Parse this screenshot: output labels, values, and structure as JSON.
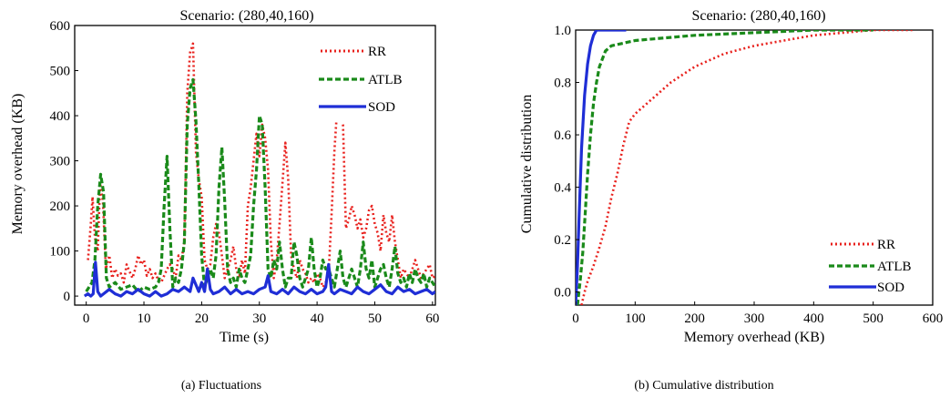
{
  "figure": {
    "caption_a": "(a) Fluctuations",
    "caption_b": "(b) Cumulative distribution"
  },
  "chart_data": [
    {
      "type": "line",
      "title": "Scenario: (280,40,160)",
      "xlabel": "Time (s)",
      "ylabel": "Memory overhead (KB)",
      "xlim": [
        -2,
        60.5
      ],
      "ylim": [
        -20,
        600
      ],
      "xticks": [
        0,
        10,
        20,
        30,
        40,
        50,
        60
      ],
      "yticks": [
        0,
        100,
        200,
        300,
        400,
        500,
        600
      ],
      "grid": false,
      "legend_position": "top-right",
      "series": [
        {
          "name": "RR",
          "color": "#e8211d",
          "style": "dotted",
          "x": [
            0.3,
            0.8,
            1.1,
            1.5,
            2.0,
            2.4,
            2.9,
            3.4,
            4.0,
            4.5,
            5.0,
            5.5,
            6.0,
            6.5,
            7.0,
            7.5,
            8.0,
            8.5,
            9.0,
            9.5,
            10.0,
            10.5,
            11.0,
            11.5,
            12.0,
            12.5,
            13.0,
            13.5,
            14.0,
            14.5,
            15.0,
            15.5,
            16.0,
            16.5,
            17.0,
            17.5,
            18.0,
            18.5,
            19.0,
            19.5,
            20.0,
            20.5,
            21.0,
            21.5,
            22.0,
            22.5,
            23.0,
            23.5,
            24.0,
            24.5,
            25.0,
            25.5,
            26.0,
            26.5,
            27.0,
            27.5,
            28.0,
            28.5,
            29.0,
            29.5,
            30.0,
            30.5,
            31.0,
            31.5,
            32.0,
            32.5,
            33.0,
            33.5,
            34.0,
            34.5,
            35.0,
            35.5,
            36.0,
            36.5,
            37.0,
            37.5,
            38.0,
            38.5,
            39.0,
            39.5,
            40.0,
            40.5,
            41.0,
            41.5,
            42.0,
            42.5,
            43.0,
            43.5,
            44.0,
            44.5,
            45.0,
            45.5,
            46.0,
            46.5,
            47.0,
            47.5,
            48.0,
            48.5,
            49.0,
            49.5,
            50.0,
            50.5,
            51.0,
            51.5,
            52.0,
            52.5,
            53.0,
            53.5,
            54.0,
            54.5,
            55.0,
            55.5,
            56.0,
            56.5,
            57.0,
            57.5,
            58.0,
            58.5,
            59.0,
            59.5,
            60.0,
            60.5
          ],
          "values": [
            80,
            160,
            220,
            130,
            100,
            250,
            210,
            60,
            90,
            40,
            60,
            45,
            50,
            30,
            70,
            55,
            40,
            60,
            90,
            70,
            80,
            45,
            60,
            40,
            50,
            35,
            30,
            45,
            60,
            70,
            60,
            40,
            90,
            80,
            120,
            450,
            540,
            560,
            320,
            260,
            220,
            80,
            60,
            70,
            130,
            160,
            140,
            90,
            40,
            60,
            80,
            110,
            60,
            40,
            80,
            50,
            200,
            240,
            300,
            360,
            310,
            380,
            350,
            280,
            120,
            40,
            80,
            160,
            250,
            340,
            260,
            90,
            60,
            40,
            80,
            60,
            50,
            30,
            40,
            30,
            50,
            40,
            20,
            30,
            50,
            180,
            320,
            420,
            430,
            380,
            150,
            170,
            200,
            180,
            150,
            170,
            130,
            150,
            190,
            200,
            160,
            140,
            100,
            180,
            140,
            120,
            180,
            120,
            80,
            40,
            60,
            50,
            40,
            60,
            80,
            60,
            40,
            50,
            60,
            70,
            40,
            45
          ]
        },
        {
          "name": "ATLB",
          "color": "#1a8a1a",
          "style": "dashed",
          "x": [
            0.0,
            0.5,
            1.0,
            1.5,
            2.0,
            2.5,
            3.0,
            3.5,
            4.0,
            5.0,
            6.0,
            7.0,
            8.0,
            9.0,
            10.0,
            11.0,
            12.0,
            12.5,
            13.0,
            13.5,
            14.0,
            14.5,
            15.0,
            15.5,
            16.0,
            16.5,
            17.0,
            17.5,
            18.0,
            18.5,
            19.0,
            19.5,
            20.0,
            20.5,
            21.0,
            21.5,
            22.0,
            22.5,
            23.0,
            23.5,
            24.0,
            24.5,
            25.0,
            25.5,
            26.0,
            26.5,
            27.0,
            27.5,
            28.0,
            28.5,
            29.0,
            29.5,
            30.0,
            30.5,
            31.0,
            31.5,
            32.0,
            32.5,
            33.0,
            33.5,
            34.0,
            34.5,
            35.0,
            35.5,
            36.0,
            36.5,
            37.0,
            37.5,
            38.0,
            38.5,
            39.0,
            39.5,
            40.0,
            40.5,
            41.0,
            41.5,
            42.0,
            42.5,
            43.0,
            43.5,
            44.0,
            44.5,
            45.0,
            45.5,
            46.0,
            46.5,
            47.0,
            47.5,
            48.0,
            48.5,
            49.0,
            49.5,
            50.0,
            50.5,
            51.0,
            51.5,
            52.0,
            52.5,
            53.0,
            53.5,
            54.0,
            54.5,
            55.0,
            55.5,
            56.0,
            56.5,
            57.0,
            57.5,
            58.0,
            58.5,
            59.0,
            59.5,
            60.0,
            60.5
          ],
          "values": [
            10,
            20,
            30,
            80,
            200,
            270,
            230,
            40,
            20,
            30,
            15,
            20,
            25,
            10,
            20,
            15,
            20,
            30,
            60,
            200,
            310,
            150,
            20,
            40,
            30,
            60,
            120,
            380,
            460,
            480,
            390,
            250,
            90,
            20,
            40,
            60,
            40,
            90,
            240,
            330,
            210,
            60,
            30,
            40,
            20,
            60,
            40,
            30,
            60,
            90,
            200,
            280,
            400,
            380,
            240,
            60,
            40,
            80,
            60,
            120,
            60,
            20,
            40,
            40,
            120,
            90,
            40,
            20,
            40,
            60,
            130,
            60,
            20,
            40,
            80,
            60,
            60,
            40,
            20,
            60,
            100,
            40,
            20,
            40,
            60,
            40,
            20,
            60,
            120,
            60,
            40,
            80,
            20,
            40,
            60,
            70,
            40,
            20,
            60,
            110,
            50,
            30,
            40,
            20,
            50,
            30,
            60,
            40,
            30,
            50,
            20,
            40,
            30,
            20
          ]
        },
        {
          "name": "SOD",
          "color": "#1f2ed6",
          "style": "solid",
          "x": [
            -0.3,
            0.3,
            0.8,
            1.2,
            1.6,
            2.0,
            2.5,
            3.0,
            4.0,
            5.0,
            6.0,
            7.0,
            8.0,
            9.0,
            10.0,
            11.0,
            12.0,
            13.0,
            14.0,
            15.0,
            16.0,
            17.0,
            18.0,
            18.5,
            19.0,
            19.5,
            20.0,
            20.5,
            21.0,
            21.5,
            22.0,
            23.0,
            24.0,
            25.0,
            26.0,
            27.0,
            28.0,
            29.0,
            30.0,
            31.0,
            31.5,
            32.0,
            33.0,
            34.0,
            35.0,
            36.0,
            37.0,
            38.0,
            39.0,
            40.0,
            41.0,
            41.5,
            42.0,
            42.5,
            43.0,
            44.0,
            45.0,
            46.0,
            47.0,
            48.0,
            49.0,
            50.0,
            51.0,
            52.0,
            53.0,
            54.0,
            55.0,
            56.0,
            57.0,
            58.0,
            59.0,
            60.0,
            60.5
          ],
          "values": [
            0,
            5,
            0,
            5,
            75,
            10,
            0,
            5,
            15,
            5,
            0,
            10,
            5,
            15,
            5,
            0,
            10,
            0,
            5,
            15,
            10,
            20,
            10,
            40,
            25,
            10,
            30,
            10,
            60,
            15,
            5,
            10,
            20,
            5,
            15,
            5,
            10,
            5,
            15,
            20,
            45,
            10,
            5,
            15,
            5,
            20,
            10,
            5,
            15,
            5,
            10,
            20,
            70,
            10,
            5,
            15,
            10,
            5,
            20,
            10,
            5,
            15,
            25,
            10,
            5,
            20,
            10,
            15,
            5,
            10,
            15,
            5,
            10
          ]
        }
      ]
    },
    {
      "type": "line",
      "title": "Scenario: (280,40,160)",
      "xlabel": "Memory overhead (KB)",
      "ylabel": "Cumulative distribution",
      "xlim": [
        0,
        600
      ],
      "ylim": [
        -0.05,
        1.0
      ],
      "xticks": [
        0,
        100,
        200,
        300,
        400,
        500,
        600
      ],
      "yticks": [
        0.0,
        0.2,
        0.4,
        0.6,
        0.8,
        1.0
      ],
      "grid": false,
      "legend_position": "bottom-right",
      "series": [
        {
          "name": "RR",
          "color": "#e8211d",
          "style": "dotted",
          "x": [
            10,
            15,
            20,
            30,
            40,
            50,
            60,
            70,
            80,
            90,
            100,
            130,
            160,
            200,
            250,
            300,
            350,
            400,
            450,
            500,
            570
          ],
          "values": [
            -0.05,
            0.0,
            0.04,
            0.1,
            0.17,
            0.25,
            0.36,
            0.45,
            0.56,
            0.65,
            0.68,
            0.74,
            0.8,
            0.86,
            0.91,
            0.94,
            0.96,
            0.98,
            0.99,
            1.0,
            1.0
          ]
        },
        {
          "name": "ATLB",
          "color": "#1a8a1a",
          "style": "dashed",
          "x": [
            3,
            8,
            12,
            16,
            20,
            25,
            30,
            35,
            40,
            50,
            60,
            80,
            100,
            150,
            200,
            300,
            400,
            480,
            500
          ],
          "values": [
            -0.05,
            0.05,
            0.15,
            0.3,
            0.45,
            0.6,
            0.72,
            0.8,
            0.86,
            0.92,
            0.94,
            0.95,
            0.96,
            0.97,
            0.98,
            0.99,
            1.0,
            1.0,
            1.0
          ]
        },
        {
          "name": "SOD",
          "color": "#1f2ed6",
          "style": "solid",
          "x": [
            0,
            3,
            6,
            10,
            15,
            20,
            25,
            30,
            35,
            40,
            60,
            85
          ],
          "values": [
            -0.05,
            0.1,
            0.3,
            0.55,
            0.75,
            0.87,
            0.94,
            0.98,
            1.0,
            1.0,
            1.0,
            1.0
          ]
        }
      ]
    }
  ]
}
